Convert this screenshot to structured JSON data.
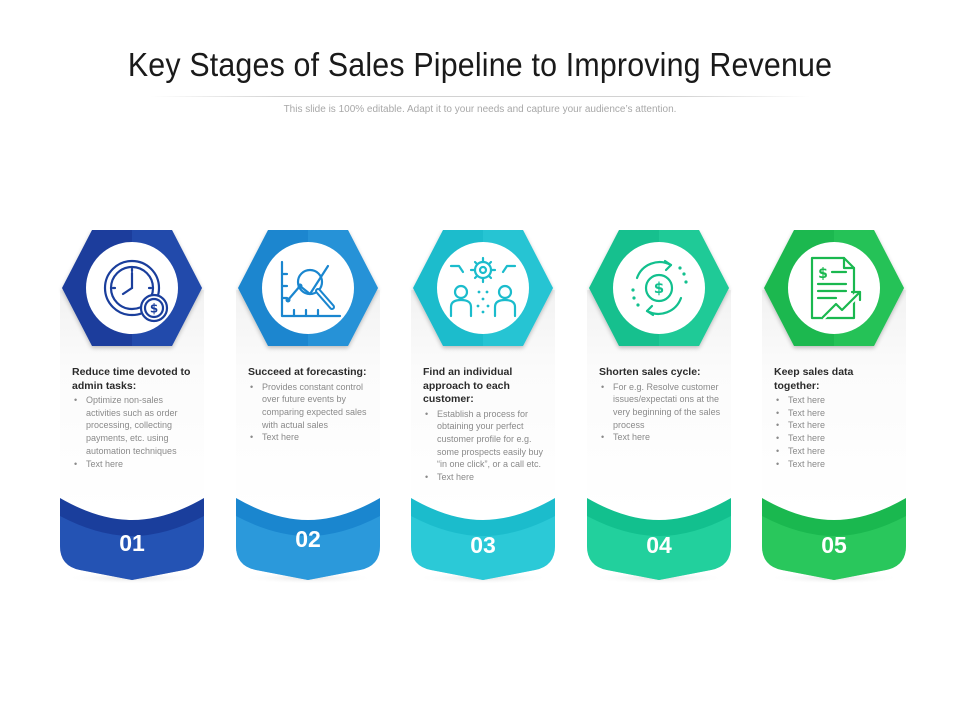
{
  "title": "Key Stages of Sales Pipeline to Improving Revenue",
  "subtitle": "This slide is 100% editable. Adapt it to your needs and capture your audience’s attention.",
  "stages": [
    {
      "number": "01",
      "heading": "Reduce time devoted to admin tasks:",
      "bullets": [
        "Optimize non-sales activities such as order processing, collecting payments, etc. using automation techniques",
        "Text here"
      ],
      "color_dark": "#1a3e9c",
      "color_light": "#2e64c9",
      "icon": "clock-dollar-icon"
    },
    {
      "number": "02",
      "heading": "Succeed at forecasting:",
      "bullets": [
        "Provides constant control over future events by comparing expected sales with actual sales",
        "Text here"
      ],
      "color_dark": "#1a86cf",
      "color_light": "#3aaae6",
      "icon": "chart-magnifier-icon"
    },
    {
      "number": "03",
      "heading": "Find an individual approach to each customer:",
      "bullets": [
        "Establish a process for obtaining your perfect customer profile for e.g. some prospects easily buy “in one click”, or a call etc.",
        "Text here"
      ],
      "color_dark": "#1bbccc",
      "color_light": "#38d4e0",
      "icon": "people-gear-icon"
    },
    {
      "number": "04",
      "heading": "Shorten sales cycle:",
      "bullets": [
        "For e.g. Resolve customer issues/expectati ons at the very beginning of the sales process",
        "Text here"
      ],
      "color_dark": "#12c08e",
      "color_light": "#30dcaa",
      "icon": "dollar-cycle-icon"
    },
    {
      "number": "05",
      "heading": "Keep sales data together:",
      "bullets": [
        "Text here",
        "Text here",
        "Text here",
        "Text here",
        "Text here",
        "Text here"
      ],
      "color_dark": "#1ab84f",
      "color_light": "#36d468",
      "icon": "sales-report-icon"
    }
  ]
}
